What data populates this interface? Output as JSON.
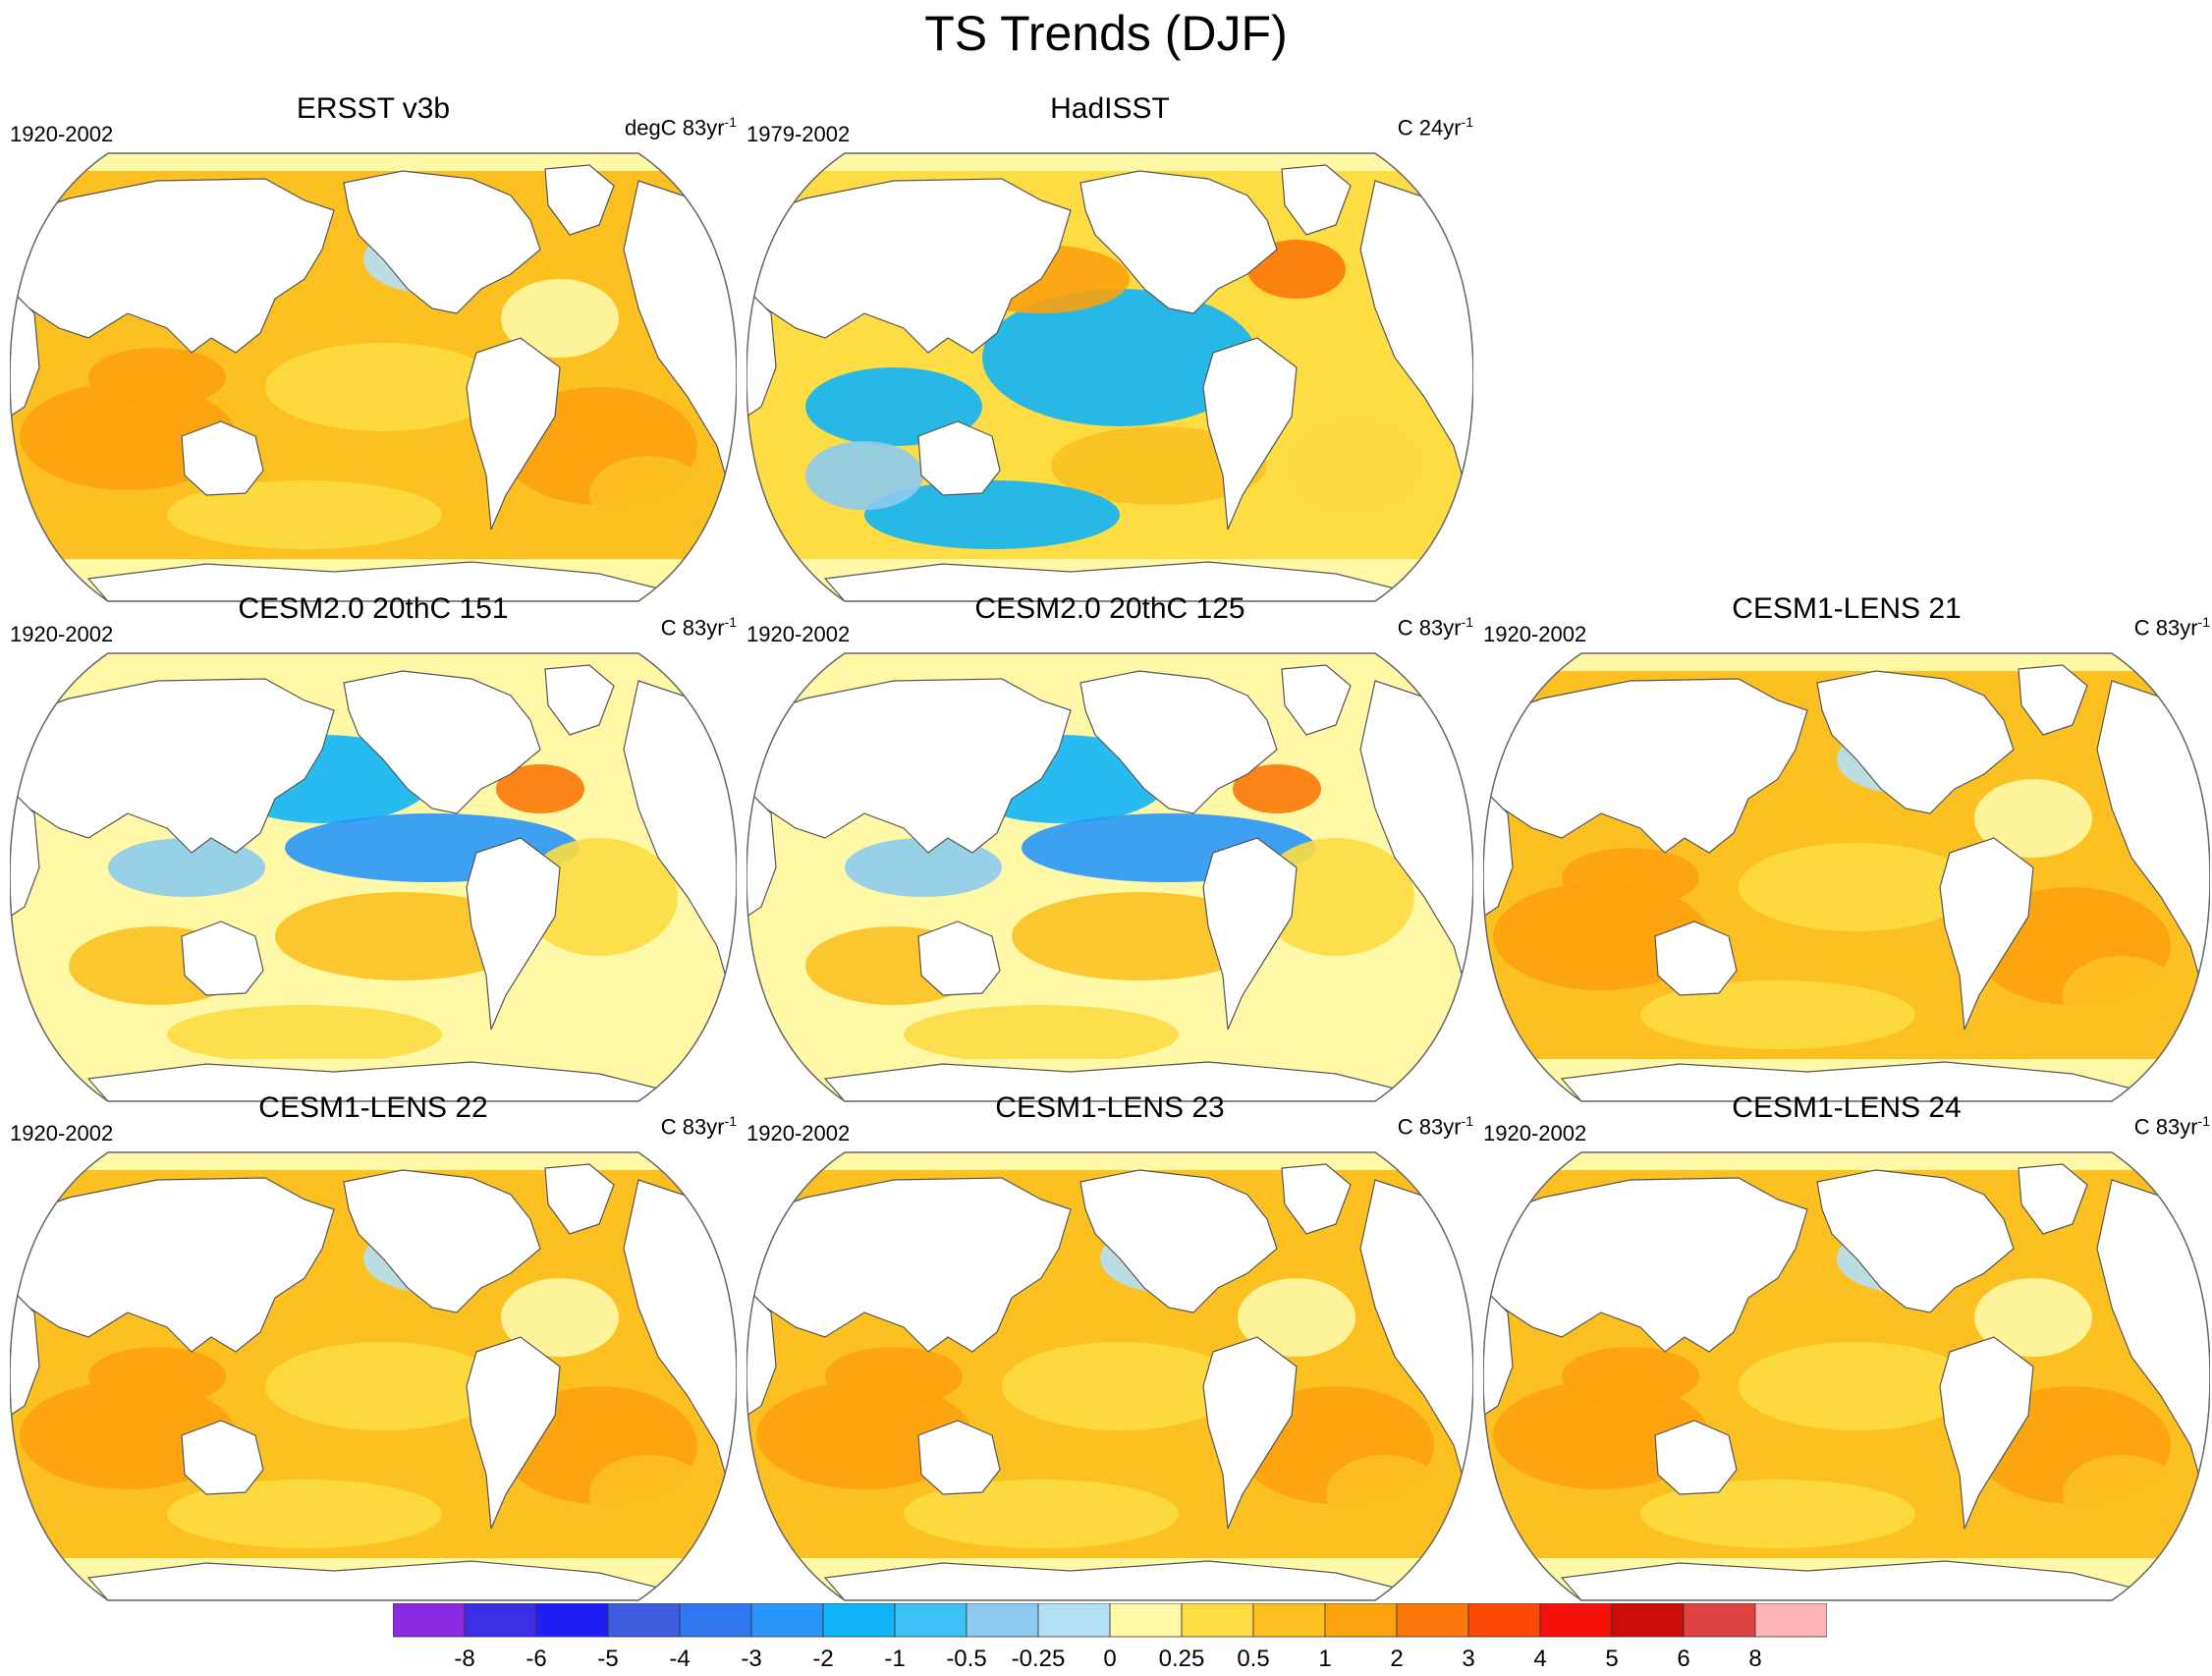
{
  "figure": {
    "title": "TS Trends (DJF)"
  },
  "colorbar": {
    "labels": [
      "-8",
      "-6",
      "-5",
      "-4",
      "-3",
      "-2",
      "-1",
      "-0.5",
      "-0.25",
      "0",
      "0.25",
      "0.5",
      "1",
      "2",
      "3",
      "4",
      "5",
      "6",
      "8"
    ],
    "colors": [
      "#8a2be2",
      "#3a2ee8",
      "#1e1ef5",
      "#3c5de0",
      "#2f78f0",
      "#2996f8",
      "#10b4f8",
      "#3cc0f5",
      "#8dcbee",
      "#b4e0f5",
      "#fff8a6",
      "#fddc44",
      "#fcc021",
      "#fca20f",
      "#fc780a",
      "#fb4a08",
      "#f5110a",
      "#cf0a0a",
      "#e04141",
      "#fcb4b4"
    ]
  },
  "chart_data": [
    {
      "type": "heatmap",
      "title": "ERSST v3b",
      "period": "1920-2002",
      "units_main": "degC 83yr",
      "units_sup": "-1",
      "pattern": "warm-dominated"
    },
    {
      "type": "heatmap",
      "title": "HadISST",
      "period": "1979-2002",
      "units_main": "C 24yr",
      "units_sup": "-1",
      "pattern": "cool central Pacific"
    },
    {
      "type": "heatmap",
      "title": "CESM2.0 20thC 151",
      "period": "1920-2002",
      "units_main": "C 83yr",
      "units_sup": "-1",
      "pattern": "mixed"
    },
    {
      "type": "heatmap",
      "title": "CESM2.0 20thC 125",
      "period": "1920-2002",
      "units_main": "C 83yr",
      "units_sup": "-1",
      "pattern": "mixed"
    },
    {
      "type": "heatmap",
      "title": "CESM1-LENS 21",
      "period": "1920-2002",
      "units_main": "C 83yr",
      "units_sup": "-1",
      "pattern": "warm-dominated"
    },
    {
      "type": "heatmap",
      "title": "CESM1-LENS 22",
      "period": "1920-2002",
      "units_main": "C 83yr",
      "units_sup": "-1",
      "pattern": "warm-dominated"
    },
    {
      "type": "heatmap",
      "title": "CESM1-LENS 23",
      "period": "1920-2002",
      "units_main": "C 83yr",
      "units_sup": "-1",
      "pattern": "warm-dominated"
    },
    {
      "type": "heatmap",
      "title": "CESM1-LENS 24",
      "period": "1920-2002",
      "units_main": "C 83yr",
      "units_sup": "-1",
      "pattern": "warm-dominated"
    }
  ]
}
